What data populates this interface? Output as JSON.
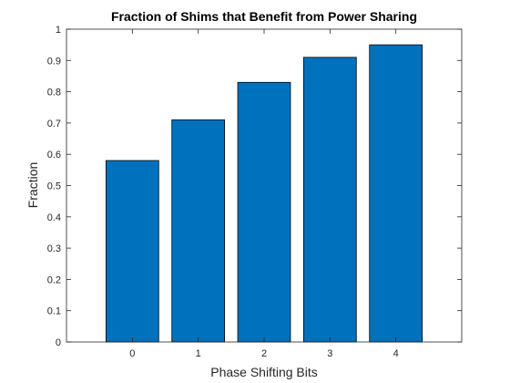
{
  "chart_data": {
    "type": "bar",
    "title": "Fraction of Shims that Benefit from Power Sharing",
    "xlabel": "Phase Shifting Bits",
    "ylabel": "Fraction",
    "categories": [
      "0",
      "1",
      "2",
      "3",
      "4"
    ],
    "values": [
      0.58,
      0.71,
      0.83,
      0.91,
      0.95
    ],
    "xlim": [
      -1,
      5
    ],
    "ylim": [
      0,
      1
    ],
    "yticks": [
      "0",
      "0.1",
      "0.2",
      "0.3",
      "0.4",
      "0.5",
      "0.6",
      "0.7",
      "0.8",
      "0.9",
      "1"
    ],
    "grid": false,
    "legend": "none",
    "bar_color": "#0072BD",
    "bar_edge_color": "#000000",
    "axis_color": "#262626"
  }
}
